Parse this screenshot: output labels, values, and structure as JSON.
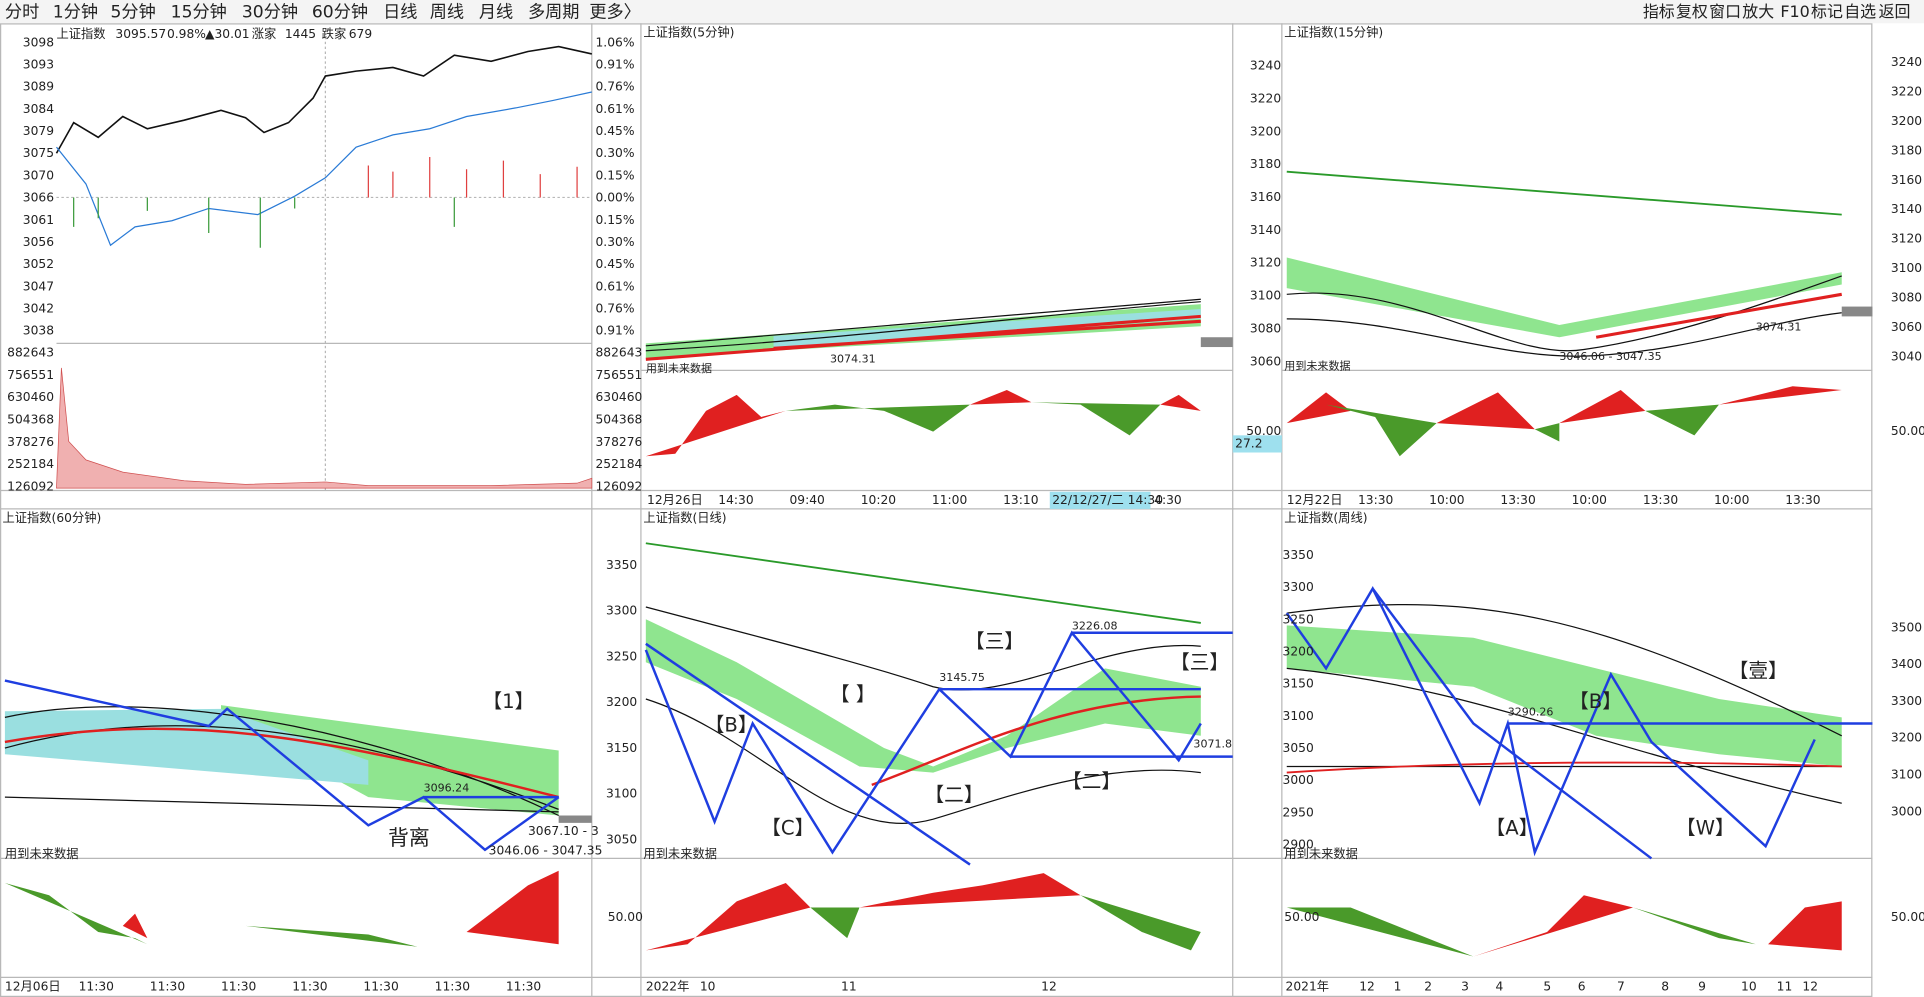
{
  "toolbar": {
    "tabs": [
      "分时",
      "1分钟",
      "5分钟",
      "15分钟",
      "30分钟",
      "60分钟",
      "日线",
      "周线",
      "月线",
      "多周期",
      "更多〉"
    ],
    "tools": [
      "指标",
      "复权",
      "窗口",
      "放大",
      "F10",
      "标记",
      "自选",
      "返回"
    ]
  },
  "panels": [
    {
      "title": "上证指数",
      "header": [
        "3095.57",
        "0.98%",
        "▲30.01",
        "涨家",
        "1445",
        "跌家",
        "679"
      ],
      "left_axis": [
        "3098",
        "3093",
        "3089",
        "3084",
        "3079",
        "3075",
        "3070",
        "3066",
        "3061",
        "3056",
        "3052",
        "3047",
        "3042",
        "3038"
      ],
      "right_axis": [
        "1.06%",
        "0.91%",
        "0.76%",
        "0.61%",
        "0.45%",
        "0.30%",
        "0.15%",
        "0.00%",
        "0.15%",
        "0.30%",
        "0.45%",
        "0.61%",
        "0.76%",
        "0.91%"
      ],
      "volume_axis": [
        "882643",
        "756551",
        "630460",
        "504368",
        "378276",
        "252184",
        "126092"
      ],
      "x_labels": [],
      "annotations": []
    },
    {
      "title": "上证指数(5分钟)",
      "x_labels": [
        "12月26日",
        "14:30",
        "09:40",
        "10:20",
        "11:00",
        "13:10",
        "22/12/27/二 14:30",
        "4:30"
      ],
      "annotations": [
        "3074.31",
        "用到未来数据",
        "27.2"
      ]
    },
    {
      "title": "上证指数(15分钟)",
      "left_axis": [
        "3240",
        "3220",
        "3200",
        "3180",
        "3160",
        "3140",
        "3120",
        "3100",
        "3080",
        "3060"
      ],
      "right_axis": [
        "3240",
        "3220",
        "3200",
        "3180",
        "3160",
        "3140",
        "3120",
        "3100",
        "3080",
        "3060",
        "3040"
      ],
      "x_labels": [
        "12月22日",
        "13:30",
        "10:00",
        "13:30",
        "10:00",
        "13:30",
        "10:00",
        "13:30"
      ],
      "annotations": [
        "3074.31",
        "3046.06 - 3047.35",
        "用到未来数据",
        "50.00",
        "50.00"
      ]
    },
    {
      "title": "上证指数(60分钟)",
      "x_labels": [
        "12月06日",
        "11:30",
        "11:30",
        "11:30",
        "11:30",
        "11:30",
        "11:30",
        "11:30"
      ],
      "annotations": [
        "【1】",
        "背离",
        "3096.24",
        "3067.10 - 3",
        "3046.06 - 3047.35",
        "用到未来数据"
      ]
    },
    {
      "title": "上证指数(日线)",
      "left_axis": [
        "3350",
        "3300",
        "3250",
        "3200",
        "3150",
        "3100",
        "3050"
      ],
      "x_labels": [
        "2022年",
        "10",
        "11",
        "12"
      ],
      "annotations": [
        "【B】",
        "【C】",
        "【  】",
        "【二】",
        "【二】",
        "【三】",
        "【三】",
        "3145.75",
        "3226.08",
        "3071.8",
        "用到未来数据",
        "50.00"
      ]
    },
    {
      "title": "上证指数(周线)",
      "left_axis": [
        "3350",
        "3300",
        "3250",
        "3200",
        "3150",
        "3100",
        "3050",
        "3000",
        "2950",
        "2900"
      ],
      "right_axis": [
        "3500",
        "3400",
        "3300",
        "3200",
        "3100",
        "3000"
      ],
      "x_labels": [
        "2021年",
        "12",
        "1",
        "2",
        "3",
        "4",
        "5",
        "6",
        "7",
        "8",
        "9",
        "10",
        "11",
        "12"
      ],
      "annotations": [
        "【壹】",
        "【B】",
        "【A】",
        "【W】",
        "3290.26",
        "用到未来数据",
        "50.00",
        "50.00"
      ]
    }
  ]
}
